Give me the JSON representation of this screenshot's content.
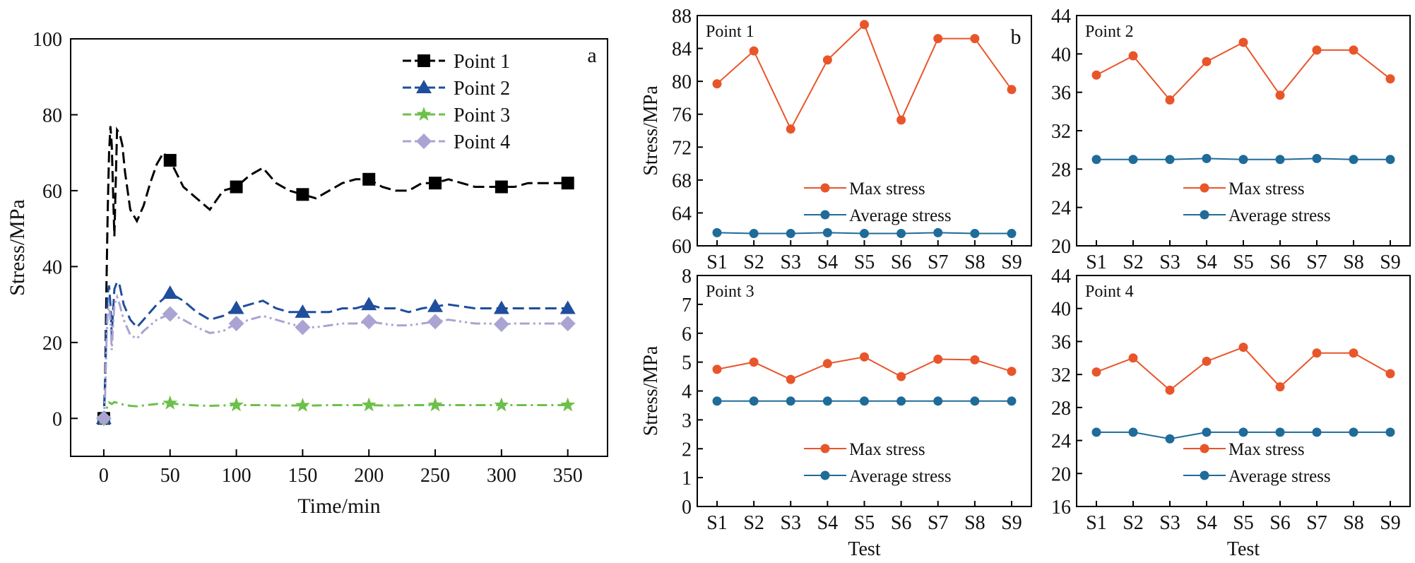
{
  "chart_data": [
    {
      "type": "line",
      "panel_letter": "a",
      "xlabel": "Time/min",
      "ylabel": "Stress/MPa",
      "xlim": [
        -25,
        380
      ],
      "ylim": [
        -10,
        100
      ],
      "xticks": [
        0,
        50,
        100,
        150,
        200,
        250,
        300,
        350
      ],
      "yticks": [
        0,
        20,
        40,
        60,
        80,
        100
      ],
      "legend_position": "top-right",
      "series": [
        {
          "name": "Point 1",
          "color": "#000000",
          "marker": "square",
          "dash": "dash",
          "x": [
            -3,
            0,
            1,
            2,
            3,
            4,
            5,
            6,
            7,
            8,
            9,
            10,
            12,
            14,
            16,
            20,
            25,
            30,
            35,
            40,
            45,
            50,
            60,
            70,
            80,
            90,
            100,
            110,
            120,
            130,
            140,
            150,
            160,
            170,
            180,
            190,
            200,
            210,
            220,
            230,
            240,
            250,
            260,
            270,
            280,
            290,
            300,
            310,
            320,
            330,
            340,
            350
          ],
          "y": [
            0,
            0,
            10,
            35,
            55,
            70,
            77,
            72,
            60,
            48,
            62,
            76,
            75,
            72,
            65,
            55,
            52,
            56,
            62,
            67,
            70,
            68,
            61,
            58,
            55,
            60,
            61,
            64,
            66,
            62,
            60,
            59,
            58,
            60,
            62,
            63,
            63,
            61,
            60,
            60,
            62,
            62,
            63,
            62,
            61,
            61,
            61,
            61,
            62,
            62,
            62,
            62
          ]
        },
        {
          "name": "Point 2",
          "color": "#1f4e9c",
          "marker": "triangle",
          "dash": "dash",
          "x": [
            -3,
            0,
            1,
            2,
            3,
            4,
            5,
            6,
            7,
            8,
            10,
            12,
            15,
            20,
            25,
            30,
            40,
            50,
            60,
            70,
            80,
            90,
            100,
            110,
            120,
            130,
            140,
            150,
            160,
            170,
            180,
            190,
            200,
            210,
            220,
            230,
            240,
            250,
            260,
            270,
            280,
            290,
            300,
            310,
            320,
            330,
            340,
            350
          ],
          "y": [
            0,
            0,
            8,
            25,
            33,
            35,
            30,
            22,
            28,
            34,
            36,
            35,
            30,
            26,
            24,
            26,
            30,
            33,
            31,
            28,
            26,
            27,
            29,
            30,
            31,
            29,
            28,
            28,
            28,
            28,
            29,
            29,
            30,
            29,
            29,
            28,
            29,
            29.5,
            30,
            29.5,
            29,
            29,
            29,
            29,
            29,
            29,
            29,
            29
          ]
        },
        {
          "name": "Point 3",
          "color": "#6cc04a",
          "marker": "star",
          "dash": "dashdot",
          "x": [
            -3,
            0,
            2,
            4,
            6,
            8,
            10,
            15,
            20,
            25,
            30,
            40,
            50,
            60,
            70,
            80,
            90,
            100,
            110,
            120,
            130,
            140,
            150,
            160,
            170,
            180,
            190,
            200,
            210,
            220,
            230,
            240,
            250,
            260,
            270,
            280,
            290,
            300,
            310,
            320,
            330,
            340,
            350
          ],
          "y": [
            0,
            0,
            2.5,
            4.2,
            3.8,
            4.3,
            4.1,
            3.6,
            3.3,
            3.2,
            3.4,
            3.8,
            4.0,
            3.6,
            3.4,
            3.3,
            3.4,
            3.5,
            3.5,
            3.5,
            3.4,
            3.4,
            3.4,
            3.4,
            3.5,
            3.5,
            3.5,
            3.5,
            3.4,
            3.4,
            3.5,
            3.5,
            3.5,
            3.5,
            3.5,
            3.5,
            3.5,
            3.5,
            3.5,
            3.5,
            3.5,
            3.5,
            3.5
          ]
        },
        {
          "name": "Point 4",
          "color": "#a9a4d2",
          "marker": "diamond",
          "dash": "dashdotdot",
          "x": [
            -3,
            0,
            1,
            2,
            3,
            4,
            5,
            6,
            7,
            8,
            10,
            12,
            15,
            20,
            25,
            30,
            40,
            50,
            60,
            70,
            80,
            90,
            100,
            110,
            120,
            130,
            140,
            150,
            160,
            170,
            180,
            190,
            200,
            210,
            220,
            230,
            240,
            250,
            260,
            270,
            280,
            290,
            300,
            310,
            320,
            330,
            340,
            350
          ],
          "y": [
            0,
            0,
            6,
            20,
            28,
            30,
            26,
            18,
            24,
            30,
            32,
            30,
            26,
            22,
            21,
            23,
            26,
            27.5,
            26,
            24,
            22.5,
            23,
            25,
            26,
            27,
            26,
            25,
            24,
            24,
            24.5,
            25,
            25,
            25.5,
            25,
            24.5,
            24.5,
            25,
            25.5,
            26,
            25.5,
            25,
            25,
            24.8,
            25,
            25,
            25,
            25,
            25
          ]
        }
      ],
      "markers": {
        "Point 1": {
          "x": [
            0,
            50,
            100,
            150,
            200,
            250,
            300,
            350
          ],
          "y": [
            0,
            68,
            61,
            59,
            63,
            62,
            61,
            62
          ]
        },
        "Point 2": {
          "x": [
            0,
            50,
            100,
            150,
            200,
            250,
            300,
            350
          ],
          "y": [
            0,
            33,
            29,
            28,
            30,
            29.5,
            29,
            29
          ]
        },
        "Point 3": {
          "x": [
            0,
            50,
            100,
            150,
            200,
            250,
            300,
            350
          ],
          "y": [
            0,
            4,
            3.5,
            3.4,
            3.5,
            3.5,
            3.5,
            3.5
          ]
        },
        "Point 4": {
          "x": [
            0,
            50,
            100,
            150,
            200,
            250,
            300,
            350
          ],
          "y": [
            0,
            27.5,
            25,
            24,
            25.5,
            25.5,
            24.8,
            25
          ]
        }
      }
    },
    {
      "type": "line",
      "panel_letter": "b",
      "panel_title": "Point 1",
      "ylabel": "Stress/MPa",
      "xlabel": "",
      "categories": [
        "S1",
        "S2",
        "S3",
        "S4",
        "S5",
        "S6",
        "S7",
        "S8",
        "S9"
      ],
      "ylim": [
        60,
        88
      ],
      "yticks": [
        60,
        64,
        68,
        72,
        76,
        80,
        84,
        88
      ],
      "legend_position": "bottom-center",
      "series": [
        {
          "name": "Max stress",
          "color": "#e9552a",
          "values": [
            79.7,
            83.7,
            74.2,
            82.6,
            86.9,
            75.3,
            85.2,
            85.2,
            79.0
          ]
        },
        {
          "name": "Average stress",
          "color": "#1f6b99",
          "values": [
            61.6,
            61.5,
            61.5,
            61.6,
            61.5,
            61.5,
            61.6,
            61.5,
            61.5
          ]
        }
      ]
    },
    {
      "type": "line",
      "panel_title": "Point 2",
      "ylabel": "",
      "xlabel": "",
      "categories": [
        "S1",
        "S2",
        "S3",
        "S4",
        "S5",
        "S6",
        "S7",
        "S8",
        "S9"
      ],
      "ylim": [
        20,
        44
      ],
      "yticks": [
        20,
        24,
        28,
        32,
        36,
        40,
        44
      ],
      "legend_position": "bottom-center",
      "series": [
        {
          "name": "Max stress",
          "color": "#e9552a",
          "values": [
            37.8,
            39.8,
            35.2,
            39.2,
            41.2,
            35.7,
            40.4,
            40.4,
            37.4
          ]
        },
        {
          "name": "Average stress",
          "color": "#1f6b99",
          "values": [
            29.0,
            29.0,
            29.0,
            29.1,
            29.0,
            29.0,
            29.1,
            29.0,
            29.0
          ]
        }
      ]
    },
    {
      "type": "line",
      "panel_title": "Point 3",
      "ylabel": "Stress/MPa",
      "xlabel": "Test",
      "categories": [
        "S1",
        "S2",
        "S3",
        "S4",
        "S5",
        "S6",
        "S7",
        "S8",
        "S9"
      ],
      "ylim": [
        0,
        8
      ],
      "yticks": [
        0,
        1,
        2,
        3,
        4,
        5,
        6,
        7,
        8
      ],
      "legend_position": "bottom-center",
      "series": [
        {
          "name": "Max stress",
          "color": "#e9552a",
          "values": [
            4.75,
            5.0,
            4.4,
            4.95,
            5.18,
            4.5,
            5.1,
            5.08,
            4.68
          ]
        },
        {
          "name": "Average stress",
          "color": "#1f6b99",
          "values": [
            3.65,
            3.65,
            3.65,
            3.65,
            3.65,
            3.65,
            3.65,
            3.65,
            3.65
          ]
        }
      ]
    },
    {
      "type": "line",
      "panel_title": "Point 4",
      "ylabel": "",
      "xlabel": "Test",
      "categories": [
        "S1",
        "S2",
        "S3",
        "S4",
        "S5",
        "S6",
        "S7",
        "S8",
        "S9"
      ],
      "ylim": [
        16,
        44
      ],
      "yticks": [
        16,
        20,
        24,
        28,
        32,
        36,
        40,
        44
      ],
      "legend_position": "bottom-center",
      "series": [
        {
          "name": "Max stress",
          "color": "#e9552a",
          "values": [
            32.3,
            34.0,
            30.1,
            33.6,
            35.3,
            30.5,
            34.6,
            34.6,
            32.1
          ]
        },
        {
          "name": "Average stress",
          "color": "#1f6b99",
          "values": [
            25.0,
            25.0,
            24.2,
            25.0,
            25.0,
            25.0,
            25.0,
            25.0,
            25.0
          ]
        }
      ]
    }
  ]
}
